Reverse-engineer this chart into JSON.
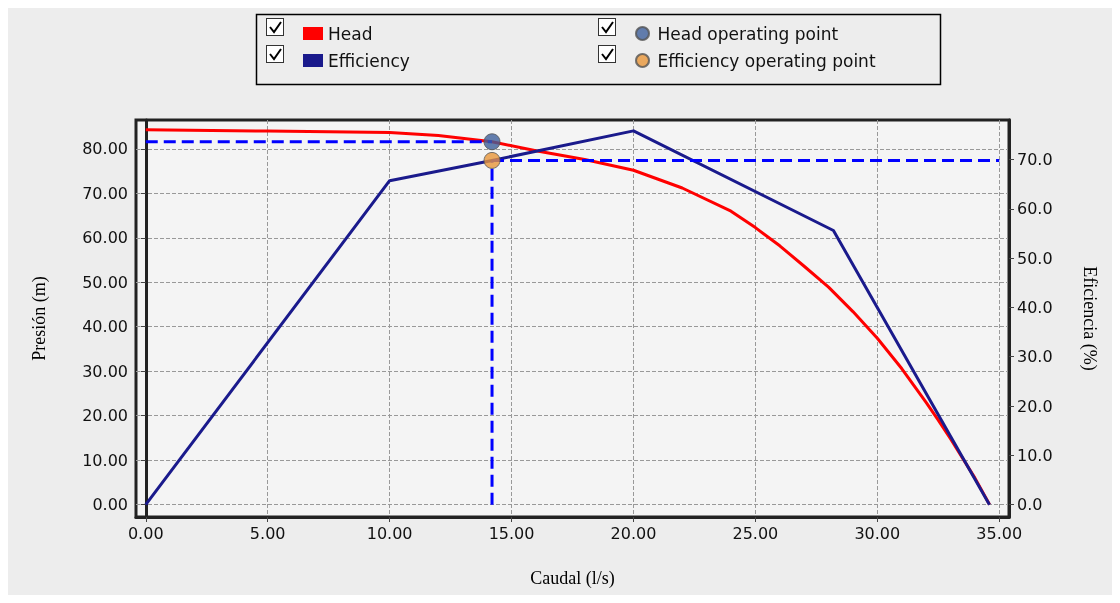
{
  "chart_data": {
    "type": "line",
    "xlabel": "Caudal (l/s)",
    "ylabel": "Presión (m)",
    "y2label": "Eficiencia (%)",
    "legend": "top",
    "grid": true,
    "marker": "none",
    "xlim": [
      -0.4,
      35.4
    ],
    "ylim": [
      -2.8,
      86.5
    ],
    "y2lim": [
      -2.5,
      78
    ],
    "xticks": [
      {
        "value": 0,
        "label": "0.00"
      },
      {
        "value": 5,
        "label": "5.00"
      },
      {
        "value": 10,
        "label": "10.00"
      },
      {
        "value": 15,
        "label": "15.00"
      },
      {
        "value": 20,
        "label": "20.00"
      },
      {
        "value": 25,
        "label": "25.00"
      },
      {
        "value": 30,
        "label": "30.00"
      },
      {
        "value": 35,
        "label": "35.00"
      }
    ],
    "yticks": [
      {
        "value": 0,
        "label": "0.00"
      },
      {
        "value": 10,
        "label": "10.00"
      },
      {
        "value": 20,
        "label": "20.00"
      },
      {
        "value": 30,
        "label": "30.00"
      },
      {
        "value": 40,
        "label": "40.00"
      },
      {
        "value": 50,
        "label": "50.00"
      },
      {
        "value": 60,
        "label": "60.00"
      },
      {
        "value": 70,
        "label": "70.00"
      },
      {
        "value": 80,
        "label": "80.00"
      }
    ],
    "y2ticks": [
      {
        "value": 0,
        "label": "0.0"
      },
      {
        "value": 10,
        "label": "10.0"
      },
      {
        "value": 20,
        "label": "20.0"
      },
      {
        "value": 30,
        "label": "30.0"
      },
      {
        "value": 40,
        "label": "40.0"
      },
      {
        "value": 50,
        "label": "50.0"
      },
      {
        "value": 60,
        "label": "60.0"
      },
      {
        "value": 70,
        "label": "70.0"
      }
    ],
    "series": [
      {
        "name": "Head",
        "color": "#ff0000",
        "x": [
          0,
          5,
          10,
          12,
          14.2,
          16,
          18,
          20,
          22,
          24,
          25,
          26,
          27,
          28,
          29,
          30,
          31,
          32,
          32.5,
          33,
          34,
          34.6
        ],
        "values": [
          84.3,
          84.0,
          83.7,
          83.0,
          81.6,
          79.6,
          77.6,
          75.2,
          71.2,
          66.0,
          62.3,
          58.2,
          53.6,
          48.9,
          43.4,
          37.4,
          30.6,
          23.0,
          19.0,
          14.8,
          6.0,
          0
        ]
      },
      {
        "name": "Efficiency",
        "color": "#1a1a8c",
        "axis": "y2",
        "x": [
          0,
          10,
          14.2,
          20,
          28.2,
          34.6
        ],
        "values": [
          0,
          65.7,
          69.8,
          75.8,
          55.6,
          0
        ]
      },
      {
        "name": "Head operating point",
        "type": "scatter",
        "marker": "circle",
        "color": "#3d5f9b",
        "x": [
          14.2
        ],
        "values": [
          81.6
        ]
      },
      {
        "name": "Efficiency operating point",
        "type": "scatter",
        "marker": "circle",
        "color": "#e8963a",
        "axis": "y2",
        "x": [
          14.2
        ],
        "values": [
          69.8
        ]
      },
      {
        "color": "#0000ff",
        "line_style": "dashed",
        "x": [
          0,
          14.2
        ],
        "values": [
          81.6,
          81.6
        ]
      },
      {
        "color": "#0000ff",
        "line_style": "dashed",
        "axis": "y2",
        "x": [
          14.2,
          35
        ],
        "values": [
          69.8,
          69.8
        ]
      },
      {
        "color": "#0000ff",
        "line_style": "dashed",
        "axis": "y2",
        "x": [
          14.2,
          14.2
        ],
        "values": [
          0,
          69.8
        ]
      }
    ]
  }
}
